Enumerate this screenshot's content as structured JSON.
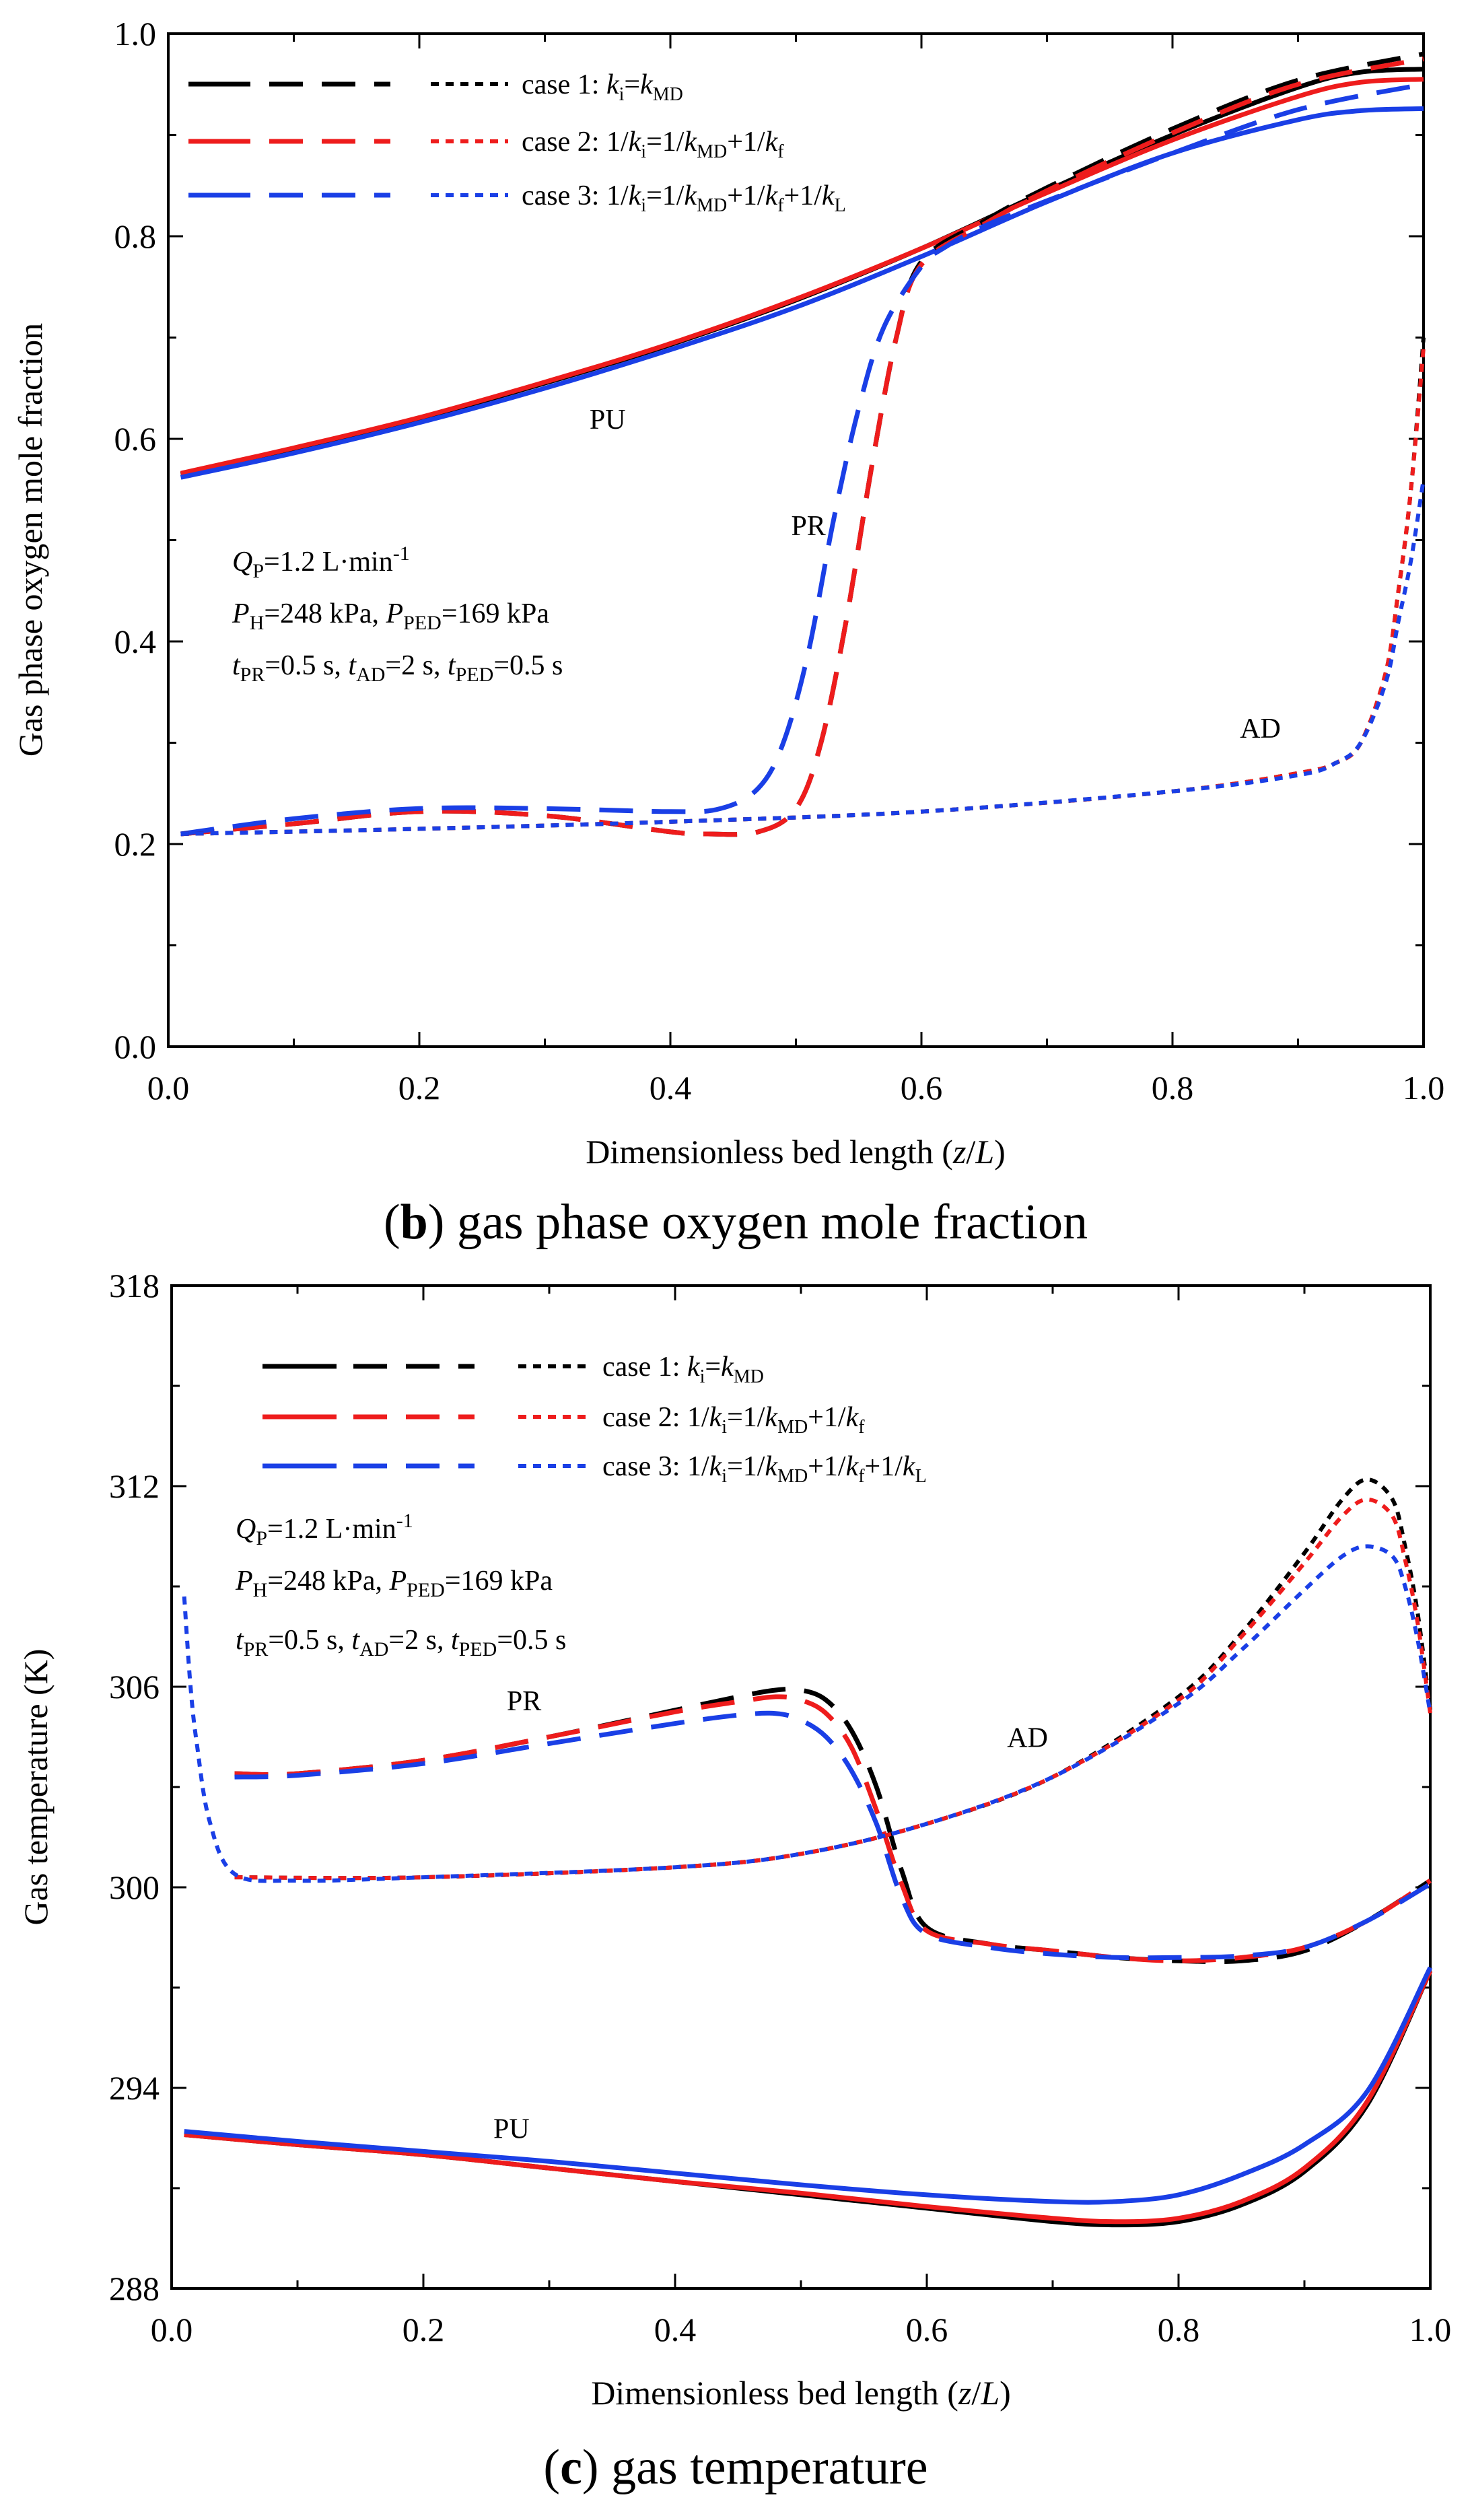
{
  "colors": {
    "case1": "#000000",
    "case2": "#ee1c1c",
    "case3": "#1a3fe6"
  },
  "line_styles": [
    "solid",
    "dash",
    "dot"
  ],
  "legend_labels": [
    {
      "text": "case 1:",
      "formula": "ki=kMD"
    },
    {
      "text": "case 2:",
      "formula": "1/ki=1/kMD+1/kf"
    },
    {
      "text": "case 3:",
      "formula": "1/ki=1/kMD+1/kf+1/kL"
    }
  ],
  "annotations": {
    "qp": {
      "base": "Q",
      "sub": "P",
      "rest": "=1.2 L·min",
      "sup": "-1"
    },
    "pressure": {
      "ph": "P",
      "ph_sub": "H",
      "ph_val": "=248 kPa, ",
      "pped": "P",
      "pped_sub": "PED",
      "pped_val": "=169 kPa"
    },
    "times": {
      "t1": "t",
      "t1_sub": "PR",
      "t1_val": "=0.5 s, ",
      "t2": "t",
      "t2_sub": "AD",
      "t2_val": "=2 s, ",
      "t3": "t",
      "t3_sub": "PED",
      "t3_val": "=0.5 s"
    }
  },
  "chart_data": [
    {
      "type": "line",
      "panel": "b",
      "caption_letter": "b",
      "caption": " gas phase oxygen mole fraction",
      "xlabel": "Dimensionless bed length (z/L)",
      "xlabel_parts": [
        "Dimensionless bed length (",
        "z",
        "/",
        "L",
        ")"
      ],
      "ylabel": "Gas phase oxygen mole fraction",
      "xlim": [
        0.0,
        1.0
      ],
      "ylim": [
        0.0,
        1.0
      ],
      "xticks": [
        "0.0",
        "0.2",
        "0.4",
        "0.6",
        "0.8",
        "1.0"
      ],
      "yticks": [
        "0.0",
        "0.2",
        "0.4",
        "0.6",
        "0.8",
        "1.0"
      ],
      "region_labels": [
        {
          "text": "PU",
          "x": 0.35,
          "y": 0.61
        },
        {
          "text": "PR",
          "x": 0.51,
          "y": 0.505
        },
        {
          "text": "AD",
          "x": 0.87,
          "y": 0.305
        }
      ],
      "series": [
        {
          "name": "case 1 PU",
          "case": "case1",
          "style": "solid",
          "x": [
            0.01,
            0.1,
            0.2,
            0.3,
            0.4,
            0.5,
            0.6,
            0.7,
            0.8,
            0.9,
            0.95,
            1.0
          ],
          "y": [
            0.565,
            0.59,
            0.62,
            0.655,
            0.693,
            0.737,
            0.788,
            0.845,
            0.9,
            0.947,
            0.962,
            0.965
          ]
        },
        {
          "name": "case 2 PU",
          "case": "case2",
          "style": "solid",
          "x": [
            0.01,
            0.1,
            0.2,
            0.3,
            0.4,
            0.5,
            0.6,
            0.7,
            0.8,
            0.9,
            0.95,
            1.0
          ],
          "y": [
            0.566,
            0.591,
            0.621,
            0.656,
            0.694,
            0.738,
            0.788,
            0.843,
            0.895,
            0.938,
            0.952,
            0.955
          ]
        },
        {
          "name": "case 3 PU",
          "case": "case3",
          "style": "solid",
          "x": [
            0.01,
            0.1,
            0.2,
            0.3,
            0.4,
            0.5,
            0.6,
            0.7,
            0.8,
            0.9,
            0.95,
            1.0
          ],
          "y": [
            0.562,
            0.586,
            0.616,
            0.65,
            0.688,
            0.73,
            0.78,
            0.834,
            0.882,
            0.915,
            0.924,
            0.926
          ]
        },
        {
          "name": "case 1 PR",
          "case": "case1",
          "style": "dash",
          "x": [
            0.01,
            0.1,
            0.2,
            0.3,
            0.4,
            0.43,
            0.47,
            0.5,
            0.52,
            0.54,
            0.56,
            0.58,
            0.6,
            0.65,
            0.7,
            0.8,
            0.9,
            1.0
          ],
          "y": [
            0.21,
            0.22,
            0.232,
            0.228,
            0.212,
            0.21,
            0.212,
            0.235,
            0.3,
            0.42,
            0.57,
            0.7,
            0.775,
            0.815,
            0.848,
            0.906,
            0.954,
            0.98
          ]
        },
        {
          "name": "case 2 PR",
          "case": "case2",
          "style": "dash",
          "x": [
            0.01,
            0.1,
            0.2,
            0.3,
            0.4,
            0.43,
            0.47,
            0.5,
            0.52,
            0.54,
            0.56,
            0.58,
            0.6,
            0.65,
            0.7,
            0.8,
            0.9,
            1.0
          ],
          "y": [
            0.21,
            0.22,
            0.232,
            0.228,
            0.212,
            0.21,
            0.212,
            0.235,
            0.3,
            0.42,
            0.57,
            0.7,
            0.772,
            0.812,
            0.845,
            0.902,
            0.95,
            0.975
          ]
        },
        {
          "name": "case 3 PR",
          "case": "case3",
          "style": "dash",
          "x": [
            0.01,
            0.1,
            0.2,
            0.3,
            0.4,
            0.44,
            0.47,
            0.49,
            0.51,
            0.53,
            0.55,
            0.57,
            0.6,
            0.62,
            0.65,
            0.7,
            0.8,
            0.9,
            1.0
          ],
          "y": [
            0.21,
            0.225,
            0.235,
            0.235,
            0.232,
            0.235,
            0.255,
            0.3,
            0.39,
            0.52,
            0.63,
            0.71,
            0.77,
            0.79,
            0.81,
            0.835,
            0.882,
            0.925,
            0.95
          ]
        },
        {
          "name": "case 1 AD",
          "case": "case1",
          "style": "dot",
          "x": [
            0.01,
            0.2,
            0.4,
            0.6,
            0.8,
            0.9,
            0.93,
            0.95,
            0.97,
            0.98,
            0.99,
            1.0
          ],
          "y": [
            0.21,
            0.215,
            0.222,
            0.232,
            0.252,
            0.27,
            0.28,
            0.3,
            0.37,
            0.45,
            0.55,
            0.7
          ]
        },
        {
          "name": "case 2 AD",
          "case": "case2",
          "style": "dot",
          "x": [
            0.01,
            0.2,
            0.4,
            0.6,
            0.8,
            0.9,
            0.93,
            0.95,
            0.97,
            0.98,
            0.99,
            1.0
          ],
          "y": [
            0.21,
            0.215,
            0.222,
            0.232,
            0.252,
            0.27,
            0.28,
            0.3,
            0.37,
            0.45,
            0.55,
            0.69
          ]
        },
        {
          "name": "case 3 AD",
          "case": "case3",
          "style": "dot",
          "x": [
            0.01,
            0.2,
            0.4,
            0.6,
            0.8,
            0.9,
            0.93,
            0.95,
            0.97,
            0.98,
            0.99,
            1.0
          ],
          "y": [
            0.21,
            0.215,
            0.222,
            0.232,
            0.252,
            0.268,
            0.28,
            0.3,
            0.36,
            0.42,
            0.48,
            0.56
          ]
        }
      ]
    },
    {
      "type": "line",
      "panel": "c",
      "caption_letter": "c",
      "caption": " gas temperature",
      "xlabel": "Dimensionless bed length (z/L)",
      "xlabel_parts": [
        "Dimensionless bed length (",
        "z",
        "/",
        "L",
        ")"
      ],
      "ylabel": "Gas temperature (K)",
      "xlim": [
        0.0,
        1.0
      ],
      "ylim": [
        288,
        318
      ],
      "xticks": [
        "0.0",
        "0.2",
        "0.4",
        "0.6",
        "0.8",
        "1.0"
      ],
      "yticks": [
        "288",
        "294",
        "300",
        "306",
        "312",
        "318"
      ],
      "region_labels": [
        {
          "text": "PR",
          "x": 0.28,
          "y": 305.3
        },
        {
          "text": "AD",
          "x": 0.68,
          "y": 304.2
        },
        {
          "text": "PU",
          "x": 0.27,
          "y": 292.5
        }
      ],
      "series": [
        {
          "name": "case 1 PU",
          "case": "case1",
          "style": "solid",
          "x": [
            0.01,
            0.1,
            0.2,
            0.3,
            0.4,
            0.5,
            0.6,
            0.7,
            0.75,
            0.8,
            0.85,
            0.9,
            0.95,
            1.0
          ],
          "y": [
            292.6,
            292.3,
            292.0,
            291.6,
            291.2,
            290.8,
            290.4,
            290.0,
            289.9,
            290.0,
            290.5,
            291.5,
            293.5,
            297.5
          ]
        },
        {
          "name": "case 2 PU",
          "case": "case2",
          "style": "solid",
          "x": [
            0.01,
            0.1,
            0.2,
            0.3,
            0.4,
            0.5,
            0.6,
            0.7,
            0.75,
            0.8,
            0.85,
            0.9,
            0.95,
            1.0
          ],
          "y": [
            292.6,
            292.3,
            292.0,
            291.6,
            291.2,
            290.85,
            290.45,
            290.1,
            290.0,
            290.1,
            290.6,
            291.6,
            293.6,
            297.5
          ]
        },
        {
          "name": "case 3 PU",
          "case": "case3",
          "style": "solid",
          "x": [
            0.01,
            0.1,
            0.2,
            0.3,
            0.4,
            0.5,
            0.6,
            0.7,
            0.75,
            0.8,
            0.85,
            0.9,
            0.95,
            1.0
          ],
          "y": [
            292.7,
            292.4,
            292.1,
            291.8,
            291.45,
            291.1,
            290.8,
            290.6,
            290.6,
            290.8,
            291.4,
            292.3,
            293.9,
            297.6
          ]
        },
        {
          "name": "case 1 PR",
          "case": "case1",
          "style": "dash",
          "x": [
            0.05,
            0.1,
            0.2,
            0.3,
            0.4,
            0.45,
            0.48,
            0.5,
            0.52,
            0.54,
            0.56,
            0.58,
            0.6,
            0.65,
            0.7,
            0.75,
            0.8,
            0.85,
            0.9,
            0.95,
            1.0
          ],
          "y": [
            303.4,
            303.4,
            303.8,
            304.5,
            305.3,
            305.7,
            305.9,
            305.9,
            305.6,
            304.7,
            303.0,
            300.5,
            298.8,
            298.3,
            298.1,
            297.9,
            297.8,
            297.8,
            298.1,
            299.0,
            300.2
          ]
        },
        {
          "name": "case 2 PR",
          "case": "case2",
          "style": "dash",
          "x": [
            0.05,
            0.1,
            0.2,
            0.3,
            0.4,
            0.45,
            0.48,
            0.5,
            0.52,
            0.54,
            0.56,
            0.58,
            0.6,
            0.65,
            0.7,
            0.75,
            0.8,
            0.85,
            0.9,
            0.95,
            1.0
          ],
          "y": [
            303.4,
            303.4,
            303.8,
            304.5,
            305.25,
            305.55,
            305.7,
            305.6,
            305.2,
            304.2,
            302.3,
            300.1,
            298.7,
            298.3,
            298.1,
            297.9,
            297.8,
            297.9,
            298.2,
            299.0,
            300.2
          ]
        },
        {
          "name": "case 3 PR",
          "case": "case3",
          "style": "dash",
          "x": [
            0.05,
            0.1,
            0.2,
            0.3,
            0.4,
            0.45,
            0.48,
            0.5,
            0.52,
            0.54,
            0.56,
            0.58,
            0.6,
            0.65,
            0.7,
            0.75,
            0.8,
            0.85,
            0.9,
            0.95,
            1.0
          ],
          "y": [
            303.3,
            303.35,
            303.7,
            304.3,
            304.9,
            305.15,
            305.2,
            305.0,
            304.5,
            303.5,
            301.9,
            299.7,
            298.6,
            298.2,
            298.0,
            297.9,
            297.9,
            297.95,
            298.2,
            299.0,
            300.1
          ]
        },
        {
          "name": "case 1 AD",
          "case": "case1",
          "style": "dot",
          "x": [
            0.05,
            0.2,
            0.4,
            0.5,
            0.6,
            0.7,
            0.8,
            0.85,
            0.9,
            0.93,
            0.95,
            0.97,
            0.98,
            0.99,
            1.0
          ],
          "y": [
            300.3,
            300.3,
            300.6,
            301.0,
            301.9,
            303.3,
            305.7,
            307.6,
            310.0,
            311.6,
            312.2,
            311.6,
            310.2,
            308.2,
            305.3
          ]
        },
        {
          "name": "case 2 AD",
          "case": "case2",
          "style": "dot",
          "x": [
            0.05,
            0.2,
            0.4,
            0.5,
            0.6,
            0.7,
            0.8,
            0.85,
            0.9,
            0.93,
            0.95,
            0.97,
            0.98,
            0.99,
            1.0
          ],
          "y": [
            300.3,
            300.3,
            300.6,
            301.0,
            301.9,
            303.3,
            305.6,
            307.5,
            309.7,
            311.1,
            311.6,
            311.1,
            309.8,
            307.9,
            305.2
          ]
        },
        {
          "name": "case 3 AD",
          "case": "case3",
          "style": "dot",
          "x": [
            0.01,
            0.015,
            0.02,
            0.03,
            0.05,
            0.1,
            0.2,
            0.4,
            0.5,
            0.6,
            0.7,
            0.8,
            0.85,
            0.9,
            0.93,
            0.95,
            0.97,
            0.98,
            0.99,
            1.0
          ],
          "y": [
            308.7,
            306.0,
            304.3,
            302.0,
            300.4,
            300.2,
            300.3,
            300.6,
            301.0,
            301.9,
            303.3,
            305.5,
            307.1,
            308.9,
            309.9,
            310.2,
            309.9,
            309.0,
            307.4,
            305.2
          ]
        }
      ]
    }
  ]
}
